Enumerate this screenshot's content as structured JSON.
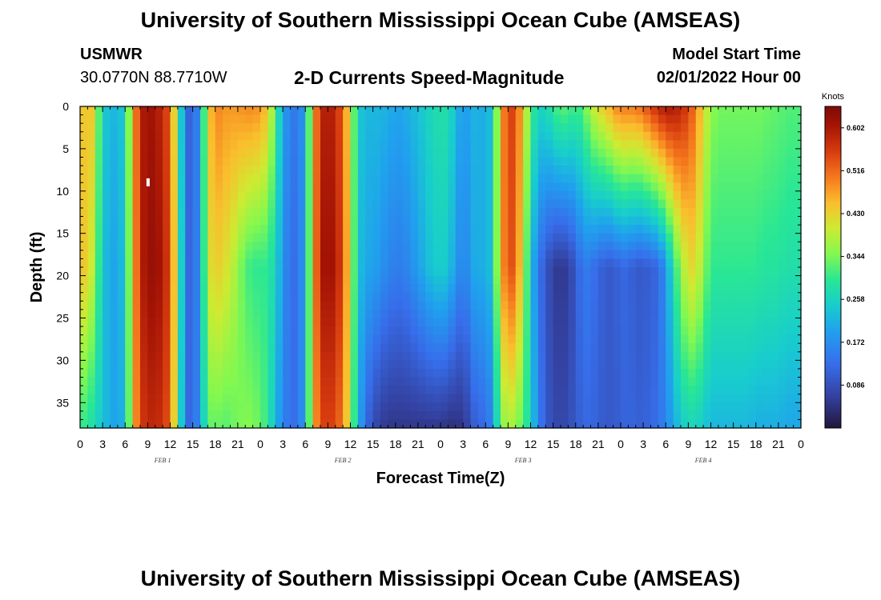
{
  "header": {
    "title": "University of Southern Mississippi Ocean Cube (AMSEAS)",
    "station": "USMWR",
    "coordinates": "30.0770N  88.7710W",
    "subtitle": "2-D Currents Speed-Magnitude",
    "start_label": "Model Start Time",
    "start_value": "02/01/2022 Hour 00"
  },
  "footer": {
    "title": "University of Southern Mississippi Ocean Cube (AMSEAS)"
  },
  "chart_data": {
    "type": "heatmap",
    "title": "2-D Currents Speed-Magnitude",
    "xlabel": "Forecast Time(Z)",
    "ylabel": "Depth (ft)",
    "x_range_hours": [
      0,
      96
    ],
    "x_tick_step_hours": 3,
    "x_tick_labels": [
      "0",
      "3",
      "6",
      "9",
      "12",
      "15",
      "18",
      "21",
      "0",
      "3",
      "6",
      "9",
      "12",
      "15",
      "18",
      "21",
      "0",
      "3",
      "6",
      "9",
      "12",
      "15",
      "18",
      "21",
      "0",
      "3",
      "6",
      "9",
      "12",
      "15",
      "18",
      "21",
      "0"
    ],
    "day_labels": [
      {
        "label": "FEB 1",
        "hour": 11
      },
      {
        "label": "FEB 2",
        "hour": 35
      },
      {
        "label": "FEB 3",
        "hour": 59
      },
      {
        "label": "FEB 4",
        "hour": 83
      }
    ],
    "y_range_ft": [
      0,
      38
    ],
    "y_ticks": [
      0,
      5,
      10,
      15,
      20,
      25,
      30,
      35
    ],
    "colorbar": {
      "unit": "Knots",
      "min": 0.0,
      "max": 0.645,
      "tick_values": [
        0.086,
        0.172,
        0.258,
        0.344,
        0.43,
        0.516,
        0.602
      ],
      "tick_labels": [
        "0.086",
        "0.172",
        "0.258",
        "0.344",
        "0.430",
        "0.516",
        "0.602"
      ]
    },
    "speed_profile_knots": {
      "description": "Approximate current speed by forecast hour at surface (0 ft), mid-depth (~18 ft) and bottom (~37 ft)",
      "hours": [
        0,
        1,
        2,
        3,
        4,
        5,
        6,
        7,
        8,
        9,
        10,
        11,
        12,
        13,
        14,
        15,
        16,
        17,
        18,
        19,
        20,
        21,
        22,
        23,
        24,
        25,
        26,
        27,
        28,
        29,
        30,
        31,
        32,
        33,
        34,
        35,
        36,
        37,
        38,
        39,
        40,
        41,
        42,
        43,
        44,
        45,
        46,
        47,
        48,
        49,
        50,
        51,
        52,
        53,
        54,
        55,
        56,
        57,
        58,
        59,
        60,
        61,
        62,
        63,
        64,
        65,
        66,
        67,
        68,
        69,
        70,
        71,
        72,
        73,
        74,
        75,
        76,
        77,
        78,
        79,
        80,
        81,
        82,
        83,
        84,
        85,
        86,
        87,
        88,
        89,
        90,
        91,
        92,
        93,
        94,
        95,
        96
      ],
      "surface": [
        0.4,
        0.48,
        0.4,
        0.25,
        0.22,
        0.22,
        0.25,
        0.45,
        0.58,
        0.62,
        0.6,
        0.58,
        0.52,
        0.34,
        0.13,
        0.1,
        0.2,
        0.42,
        0.5,
        0.48,
        0.48,
        0.48,
        0.49,
        0.49,
        0.48,
        0.44,
        0.32,
        0.2,
        0.15,
        0.14,
        0.2,
        0.45,
        0.58,
        0.6,
        0.58,
        0.52,
        0.4,
        0.25,
        0.22,
        0.22,
        0.22,
        0.21,
        0.2,
        0.2,
        0.22,
        0.23,
        0.25,
        0.27,
        0.28,
        0.28,
        0.23,
        0.18,
        0.21,
        0.22,
        0.2,
        0.25,
        0.45,
        0.56,
        0.54,
        0.44,
        0.32,
        0.26,
        0.26,
        0.3,
        0.33,
        0.32,
        0.3,
        0.32,
        0.38,
        0.42,
        0.44,
        0.48,
        0.5,
        0.5,
        0.5,
        0.52,
        0.55,
        0.58,
        0.6,
        0.6,
        0.58,
        0.55,
        0.5,
        0.42,
        0.36,
        0.34,
        0.34,
        0.34,
        0.34,
        0.34,
        0.34,
        0.34,
        0.33,
        0.33,
        0.32,
        0.32,
        0.32
      ],
      "middle": [
        0.44,
        0.44,
        0.36,
        0.24,
        0.2,
        0.2,
        0.24,
        0.44,
        0.58,
        0.62,
        0.62,
        0.6,
        0.54,
        0.36,
        0.14,
        0.1,
        0.2,
        0.4,
        0.44,
        0.42,
        0.4,
        0.36,
        0.32,
        0.3,
        0.3,
        0.3,
        0.26,
        0.18,
        0.13,
        0.13,
        0.2,
        0.45,
        0.6,
        0.62,
        0.6,
        0.54,
        0.4,
        0.24,
        0.2,
        0.2,
        0.18,
        0.16,
        0.15,
        0.15,
        0.17,
        0.19,
        0.22,
        0.24,
        0.25,
        0.24,
        0.19,
        0.15,
        0.19,
        0.22,
        0.2,
        0.25,
        0.45,
        0.55,
        0.52,
        0.4,
        0.24,
        0.14,
        0.1,
        0.06,
        0.05,
        0.06,
        0.1,
        0.15,
        0.14,
        0.12,
        0.1,
        0.1,
        0.12,
        0.12,
        0.1,
        0.1,
        0.11,
        0.12,
        0.18,
        0.28,
        0.36,
        0.42,
        0.42,
        0.36,
        0.3,
        0.3,
        0.3,
        0.3,
        0.3,
        0.3,
        0.3,
        0.29,
        0.29,
        0.29,
        0.28,
        0.28,
        0.28
      ],
      "bottom": [
        0.3,
        0.3,
        0.26,
        0.24,
        0.2,
        0.2,
        0.22,
        0.44,
        0.55,
        0.58,
        0.58,
        0.57,
        0.52,
        0.34,
        0.14,
        0.1,
        0.2,
        0.32,
        0.34,
        0.32,
        0.33,
        0.34,
        0.35,
        0.35,
        0.33,
        0.3,
        0.22,
        0.16,
        0.13,
        0.13,
        0.2,
        0.45,
        0.54,
        0.56,
        0.54,
        0.5,
        0.38,
        0.22,
        0.13,
        0.08,
        0.06,
        0.05,
        0.05,
        0.05,
        0.05,
        0.05,
        0.05,
        0.05,
        0.05,
        0.04,
        0.04,
        0.05,
        0.08,
        0.13,
        0.11,
        0.18,
        0.34,
        0.38,
        0.36,
        0.32,
        0.26,
        0.16,
        0.1,
        0.08,
        0.07,
        0.08,
        0.1,
        0.12,
        0.12,
        0.11,
        0.1,
        0.1,
        0.11,
        0.12,
        0.11,
        0.11,
        0.12,
        0.13,
        0.16,
        0.2,
        0.24,
        0.26,
        0.26,
        0.24,
        0.22,
        0.22,
        0.22,
        0.22,
        0.22,
        0.22,
        0.21,
        0.21,
        0.21,
        0.21,
        0.2,
        0.2,
        0.2
      ]
    }
  }
}
